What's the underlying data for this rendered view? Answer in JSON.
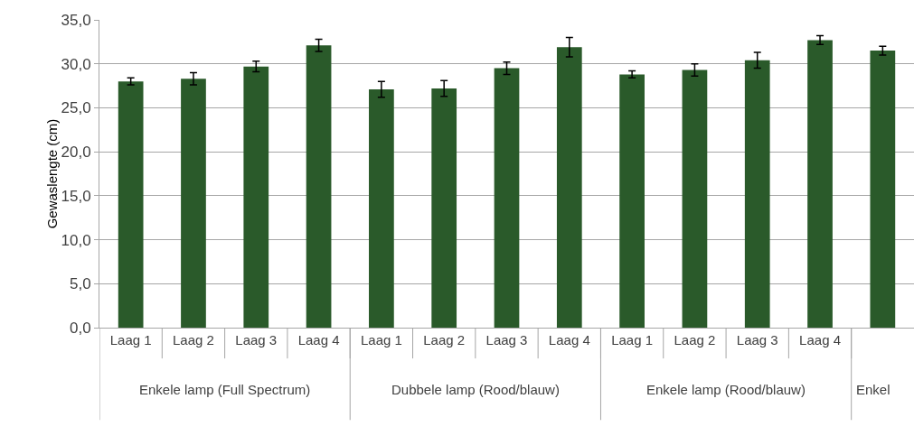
{
  "chart_data": {
    "type": "bar",
    "ylabel": "Gewaslengte (cm)",
    "categories": [
      "Laag 1",
      "Laag 2",
      "Laag 3",
      "Laag 4",
      "Laag 1",
      "Laag 2",
      "Laag 3",
      "Laag 4",
      "Laag 1",
      "Laag 2",
      "Laag 3",
      "Laag 4",
      null
    ],
    "values": [
      28.0,
      28.3,
      29.7,
      32.1,
      27.1,
      27.2,
      29.5,
      31.9,
      28.8,
      29.3,
      30.4,
      32.7,
      31.5
    ],
    "errors": [
      0.4,
      0.7,
      0.6,
      0.7,
      0.9,
      0.9,
      0.7,
      1.1,
      0.4,
      0.7,
      0.9,
      0.5,
      0.5
    ],
    "color": "#2a5a2a",
    "ylim": [
      0,
      35
    ],
    "yticks": [
      {
        "value": 0,
        "label": "0,0"
      },
      {
        "value": 5,
        "label": "5,0"
      },
      {
        "value": 10,
        "label": "10,0"
      },
      {
        "value": 15,
        "label": "15,0"
      },
      {
        "value": 20,
        "label": "20,0"
      },
      {
        "value": 25,
        "label": "25,0"
      },
      {
        "value": 30,
        "label": "30,0"
      },
      {
        "value": 35,
        "label": "35,0"
      }
    ],
    "grid": "y",
    "annotations": [
      "Enkele lamp (Full Spectrum)",
      "Dubbele lamp (Rood/blauw)",
      "Enkele lamp (Rood/blauw)",
      "Enkel"
    ]
  }
}
